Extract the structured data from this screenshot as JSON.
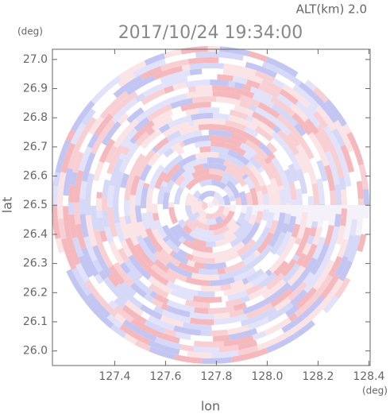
{
  "chart_data": {
    "type": "radar-ppi",
    "title": "2017/10/24 19:34:00",
    "altitude_label": "ALT(km) 2.0",
    "x_label": "lon",
    "x_unit": "(deg)",
    "y_label": "lat",
    "y_unit": "(deg)",
    "xlim": [
      127.155,
      128.405
    ],
    "xticks": [
      {
        "value": 127.4,
        "label": "127.4"
      },
      {
        "value": 127.6,
        "label": "127.6"
      },
      {
        "value": 127.8,
        "label": "127.8"
      },
      {
        "value": 128.0,
        "label": "128.0"
      },
      {
        "value": 128.2,
        "label": "128.2"
      },
      {
        "value": 128.4,
        "label": "128.4"
      }
    ],
    "ylim": [
      25.95,
      27.035
    ],
    "yticks": [
      {
        "value": 26.0,
        "label": "26.0"
      },
      {
        "value": 26.1,
        "label": "26.1"
      },
      {
        "value": 26.2,
        "label": "26.2"
      },
      {
        "value": 26.3,
        "label": "26.3"
      },
      {
        "value": 26.4,
        "label": "26.4"
      },
      {
        "value": 26.5,
        "label": "26.5"
      },
      {
        "value": 26.6,
        "label": "26.6"
      },
      {
        "value": 26.7,
        "label": "26.7"
      },
      {
        "value": 26.8,
        "label": "26.8"
      },
      {
        "value": 26.9,
        "label": "26.9"
      },
      {
        "value": 27.0,
        "label": "27.0"
      }
    ]
  }
}
